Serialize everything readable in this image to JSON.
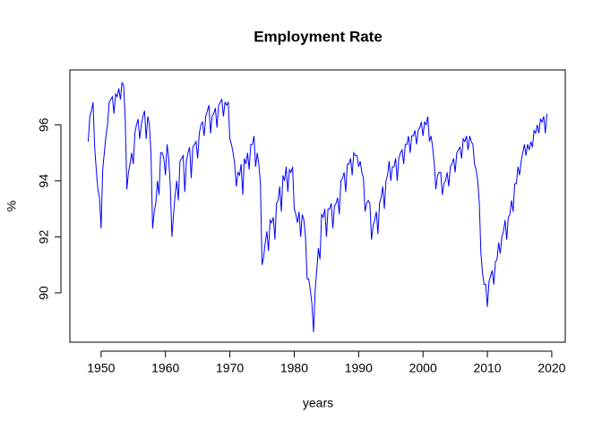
{
  "chart_data": {
    "type": "line",
    "title": "Employment Rate",
    "x_label": "years",
    "y_label": "%",
    "xlim": [
      1945.15,
      2022.1
    ],
    "ylim": [
      88.24,
      97.96
    ],
    "xticks": [
      1950,
      1960,
      1970,
      1980,
      1990,
      2000,
      2010,
      2020
    ],
    "yticks": [
      90,
      92,
      94,
      96
    ],
    "series": [
      {
        "color": "#0000ff",
        "x": [
          1948,
          1948.25,
          1948.5,
          1948.75,
          1949,
          1949.25,
          1949.5,
          1949.75,
          1950,
          1950.25,
          1950.5,
          1950.75,
          1951,
          1951.25,
          1951.5,
          1951.75,
          1952,
          1952.25,
          1952.5,
          1952.75,
          1953,
          1953.25,
          1953.5,
          1953.75,
          1954,
          1954.25,
          1954.5,
          1954.75,
          1955,
          1955.25,
          1955.5,
          1955.75,
          1956,
          1956.25,
          1956.5,
          1956.75,
          1957,
          1957.25,
          1957.5,
          1957.75,
          1958,
          1958.25,
          1958.5,
          1958.75,
          1959,
          1959.25,
          1959.5,
          1959.75,
          1960,
          1960.25,
          1960.5,
          1960.75,
          1961,
          1961.25,
          1961.5,
          1961.75,
          1962,
          1962.25,
          1962.5,
          1962.75,
          1963,
          1963.25,
          1963.5,
          1963.75,
          1964,
          1964.25,
          1964.5,
          1964.75,
          1965,
          1965.25,
          1965.5,
          1965.75,
          1966,
          1966.25,
          1966.5,
          1966.75,
          1967,
          1967.25,
          1967.5,
          1967.75,
          1968,
          1968.25,
          1968.5,
          1968.75,
          1969,
          1969.25,
          1969.5,
          1969.75,
          1970,
          1970.25,
          1970.5,
          1970.75,
          1971,
          1971.25,
          1971.5,
          1971.75,
          1972,
          1972.25,
          1972.5,
          1972.75,
          1973,
          1973.25,
          1973.5,
          1973.75,
          1974,
          1974.25,
          1974.5,
          1974.75,
          1975,
          1975.25,
          1975.5,
          1975.75,
          1976,
          1976.25,
          1976.5,
          1976.75,
          1977,
          1977.25,
          1977.5,
          1977.75,
          1978,
          1978.25,
          1978.5,
          1978.75,
          1979,
          1979.25,
          1979.5,
          1979.75,
          1980,
          1980.25,
          1980.5,
          1980.75,
          1981,
          1981.25,
          1981.5,
          1981.75,
          1982,
          1982.25,
          1982.5,
          1982.75,
          1983,
          1983.25,
          1983.5,
          1983.75,
          1984,
          1984.25,
          1984.5,
          1984.75,
          1985,
          1985.25,
          1985.5,
          1985.75,
          1986,
          1986.25,
          1986.5,
          1986.75,
          1987,
          1987.25,
          1987.5,
          1987.75,
          1988,
          1988.25,
          1988.5,
          1988.75,
          1989,
          1989.25,
          1989.5,
          1989.75,
          1990,
          1990.25,
          1990.5,
          1990.75,
          1991,
          1991.25,
          1991.5,
          1991.75,
          1992,
          1992.25,
          1992.5,
          1992.75,
          1993,
          1993.25,
          1993.5,
          1993.75,
          1994,
          1994.25,
          1994.5,
          1994.75,
          1995,
          1995.25,
          1995.5,
          1995.75,
          1996,
          1996.25,
          1996.5,
          1996.75,
          1997,
          1997.25,
          1997.5,
          1997.75,
          1998,
          1998.25,
          1998.5,
          1998.75,
          1999,
          1999.25,
          1999.5,
          1999.75,
          2000,
          2000.25,
          2000.5,
          2000.75,
          2001,
          2001.25,
          2001.5,
          2001.75,
          2002,
          2002.25,
          2002.5,
          2002.75,
          2003,
          2003.25,
          2003.5,
          2003.75,
          2004,
          2004.25,
          2004.5,
          2004.75,
          2005,
          2005.25,
          2005.5,
          2005.75,
          2006,
          2006.25,
          2006.5,
          2006.75,
          2007,
          2007.25,
          2007.5,
          2007.75,
          2008,
          2008.25,
          2008.5,
          2008.75,
          2009,
          2009.25,
          2009.5,
          2009.75,
          2010,
          2010.25,
          2010.5,
          2010.75,
          2011,
          2011.25,
          2011.5,
          2011.75,
          2012,
          2012.25,
          2012.5,
          2012.75,
          2013,
          2013.25,
          2013.5,
          2013.75,
          2014,
          2014.25,
          2014.5,
          2014.75,
          2015,
          2015.25,
          2015.5,
          2015.75,
          2016,
          2016.25,
          2016.5,
          2016.75,
          2017,
          2017.25,
          2017.5,
          2017.75,
          2018,
          2018.25,
          2018.5,
          2018.75,
          2019,
          2019.25
        ],
        "values": [
          95.4,
          96.3,
          96.5,
          96.8,
          95.2,
          94.4,
          93.7,
          93.4,
          92.3,
          94.4,
          95.0,
          95.6,
          96.0,
          96.8,
          96.9,
          97.0,
          96.4,
          97.1,
          97.0,
          97.3,
          96.9,
          97.5,
          97.4,
          96.2,
          93.7,
          94.3,
          94.6,
          95.0,
          94.6,
          95.7,
          96.0,
          96.2,
          95.5,
          96.0,
          96.3,
          96.5,
          95.5,
          96.3,
          96.0,
          95.0,
          92.3,
          92.9,
          93.2,
          94.0,
          93.5,
          95.0,
          95.0,
          94.8,
          94.2,
          95.3,
          94.8,
          93.8,
          92.0,
          92.8,
          93.5,
          94.0,
          93.3,
          94.7,
          94.8,
          94.9,
          93.6,
          94.7,
          95.0,
          95.2,
          94.1,
          95.2,
          95.3,
          95.4,
          94.8,
          95.7,
          96.0,
          96.1,
          95.6,
          96.3,
          96.5,
          96.7,
          95.7,
          96.3,
          96.4,
          96.6,
          95.9,
          96.7,
          96.8,
          96.9,
          96.3,
          96.8,
          96.7,
          96.8,
          95.5,
          95.3,
          95.0,
          94.6,
          93.8,
          94.3,
          94.2,
          94.6,
          93.5,
          94.8,
          94.6,
          95.0,
          94.4,
          95.3,
          95.3,
          95.6,
          94.5,
          95.0,
          94.6,
          93.9,
          91.0,
          91.3,
          91.8,
          92.2,
          91.5,
          92.6,
          92.5,
          92.7,
          91.9,
          93.2,
          93.3,
          93.8,
          92.9,
          94.2,
          94.0,
          94.5,
          93.6,
          94.4,
          94.3,
          94.5,
          93.0,
          92.8,
          92.5,
          92.9,
          92.0,
          92.8,
          92.6,
          92.0,
          90.5,
          90.5,
          90.1,
          89.6,
          88.6,
          90.1,
          90.8,
          91.6,
          91.2,
          92.8,
          92.7,
          93.0,
          92.0,
          93.0,
          93.0,
          93.2,
          92.3,
          93.1,
          93.2,
          93.4,
          92.8,
          94.0,
          94.1,
          94.3,
          93.6,
          94.6,
          94.6,
          94.8,
          94.2,
          95.0,
          94.9,
          94.9,
          94.5,
          94.7,
          94.3,
          94.1,
          92.9,
          93.2,
          93.3,
          93.2,
          91.9,
          92.4,
          92.6,
          92.9,
          92.1,
          93.2,
          93.4,
          93.8,
          93.0,
          94.0,
          94.2,
          94.7,
          94.0,
          94.5,
          94.5,
          94.8,
          94.0,
          94.8,
          95.0,
          95.1,
          94.6,
          95.3,
          95.3,
          95.6,
          95.0,
          95.6,
          95.6,
          95.8,
          95.3,
          95.8,
          95.9,
          96.1,
          95.6,
          96.1,
          96.0,
          96.3,
          95.4,
          95.6,
          95.2,
          94.6,
          93.7,
          94.2,
          94.3,
          94.3,
          93.5,
          93.9,
          94.0,
          94.3,
          93.8,
          94.5,
          94.6,
          94.8,
          94.3,
          95.0,
          95.1,
          95.2,
          94.8,
          95.5,
          95.4,
          95.6,
          95.1,
          95.6,
          95.4,
          95.3,
          94.6,
          94.4,
          94.0,
          93.2,
          91.4,
          90.7,
          90.3,
          90.3,
          89.5,
          90.4,
          90.6,
          90.8,
          90.3,
          91.1,
          91.2,
          91.8,
          91.4,
          92.0,
          92.2,
          92.6,
          91.9,
          92.7,
          92.8,
          93.3,
          92.9,
          93.9,
          93.9,
          94.5,
          94.2,
          94.7,
          95.0,
          95.3,
          94.9,
          95.3,
          95.1,
          95.4,
          95.2,
          95.8,
          95.7,
          96.0,
          95.7,
          96.2,
          96.1,
          96.3,
          95.7,
          96.4
        ]
      }
    ]
  }
}
